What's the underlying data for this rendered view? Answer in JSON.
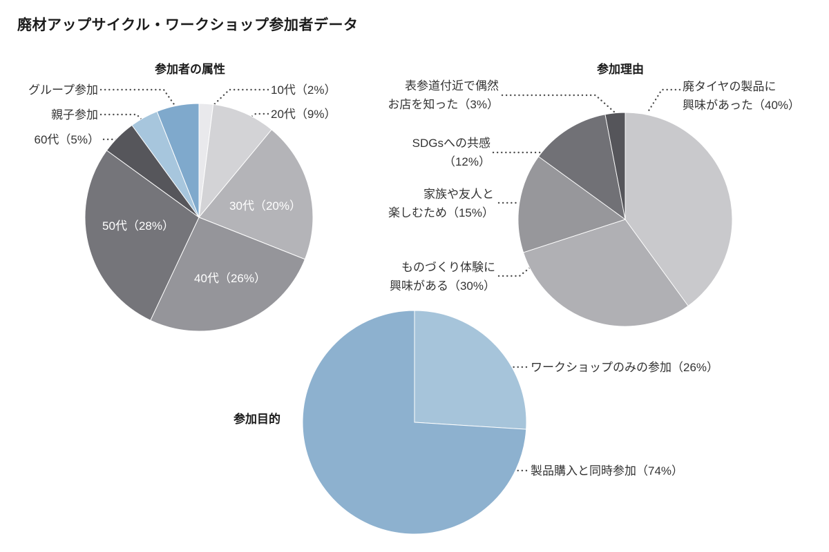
{
  "page_title": "廃材アップサイクル・ワークショップ参加者データ",
  "chart_data": [
    {
      "type": "pie",
      "title": "参加者の属性",
      "categories": [
        "10代",
        "20代",
        "30代",
        "40代",
        "50代",
        "60代",
        "親子参加",
        "グループ参加"
      ],
      "values": [
        2,
        9,
        20,
        26,
        28,
        5,
        4,
        6
      ],
      "unit": "%",
      "labels": {
        "teens": "10代（2%）",
        "twenties": "20代（9%）",
        "thirties": "30代（20%）",
        "forties": "40代（26%）",
        "fifties": "50代（28%）",
        "sixties": "60代（5%）",
        "parent_child": "親子参加",
        "group": "グループ参加"
      },
      "colors": [
        "#e9e9ec",
        "#d3d3d6",
        "#b4b4b8",
        "#95959a",
        "#75757a",
        "#56565b",
        "#a7c6dd",
        "#7fa9cc"
      ],
      "legend_position": "labels-around-pie",
      "start_angle_deg": 0,
      "direction": "clockwise"
    },
    {
      "type": "pie",
      "title": "参加理由",
      "categories": [
        "廃タイヤの製品に興味があった",
        "ものづくり体験に興味がある",
        "家族や友人と楽しむため",
        "SDGsへの共感",
        "表参道付近で偶然お店を知った"
      ],
      "values": [
        40,
        30,
        15,
        12,
        3
      ],
      "unit": "%",
      "labels": {
        "tire_products": "廃タイヤの製品に\n興味があった（40%）",
        "making_experience": "ものづくり体験に\n興味がある（30%）",
        "family_friends": "家族や友人と\n楽しむため（15%）",
        "sdgs": "SDGsへの共感\n（12%）",
        "omotesando": "表参道付近で偶然\nお店を知った（3%）"
      },
      "colors": [
        "#c9c9cc",
        "#b0b0b4",
        "#97979b",
        "#717176",
        "#55555a"
      ],
      "legend_position": "labels-around-pie",
      "start_angle_deg": 0,
      "direction": "clockwise"
    },
    {
      "type": "pie",
      "title": "参加目的",
      "categories": [
        "ワークショップのみの参加",
        "製品購入と同時参加"
      ],
      "values": [
        26,
        74
      ],
      "unit": "%",
      "labels": {
        "workshop_only": "ワークショップのみの参加（26%）",
        "with_purchase": "製品購入と同時参加（74%）"
      },
      "colors": [
        "#a6c4da",
        "#8db1cf"
      ],
      "legend_position": "labels-around-pie",
      "start_angle_deg": 0,
      "direction": "clockwise"
    }
  ]
}
